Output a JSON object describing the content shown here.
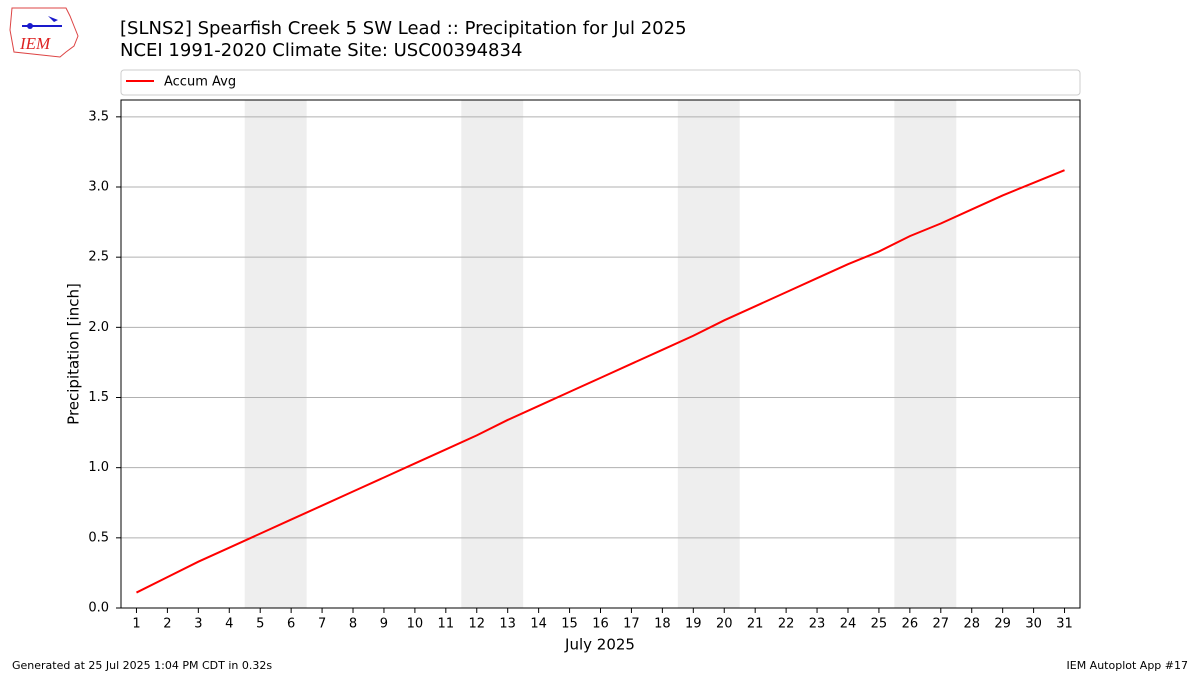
{
  "logo_text": "IEM",
  "chart_data": {
    "type": "line",
    "title": "[SLNS2] Spearfish Creek 5 SW Lead :: Precipitation for Jul 2025",
    "subtitle": "NCEI 1991-2020 Climate Site: USC00394834",
    "xlabel": "July 2025",
    "ylabel": "Precipitation [inch]",
    "x": [
      1,
      2,
      3,
      4,
      5,
      6,
      7,
      8,
      9,
      10,
      11,
      12,
      13,
      14,
      15,
      16,
      17,
      18,
      19,
      20,
      21,
      22,
      23,
      24,
      25,
      26,
      27,
      28,
      29,
      30,
      31
    ],
    "series": [
      {
        "name": "Accum Avg",
        "color": "#ff0000",
        "values": [
          0.11,
          0.22,
          0.33,
          0.43,
          0.53,
          0.63,
          0.73,
          0.83,
          0.93,
          1.03,
          1.13,
          1.23,
          1.34,
          1.44,
          1.54,
          1.64,
          1.74,
          1.84,
          1.94,
          2.05,
          2.15,
          2.25,
          2.35,
          2.45,
          2.54,
          2.65,
          2.74,
          2.84,
          2.94,
          3.03,
          3.12
        ]
      }
    ],
    "xlim": [
      0.5,
      31.5
    ],
    "xticks": [
      1,
      2,
      3,
      4,
      5,
      6,
      7,
      8,
      9,
      10,
      11,
      12,
      13,
      14,
      15,
      16,
      17,
      18,
      19,
      20,
      21,
      22,
      23,
      24,
      25,
      26,
      27,
      28,
      29,
      30,
      31
    ],
    "ylim": [
      0,
      3.62
    ],
    "yticks": [
      {
        "value": 0,
        "label": "0.0"
      },
      0.5,
      {
        "value": 1,
        "label": "1.0"
      },
      1.5,
      {
        "value": 2,
        "label": "2.0"
      },
      2.5,
      {
        "value": 3,
        "label": "3.0"
      },
      3.5
    ],
    "grid": true,
    "shaded_spans": [
      [
        4.5,
        6.5
      ],
      [
        11.5,
        13.5
      ],
      [
        18.5,
        20.5
      ],
      [
        25.5,
        27.5
      ]
    ],
    "shade_color": "#eeeeee",
    "legend_position": "top",
    "footer_left": "Generated at 25 Jul 2025 1:04 PM CDT in 0.32s",
    "footer_right": "IEM Autoplot App #17"
  }
}
